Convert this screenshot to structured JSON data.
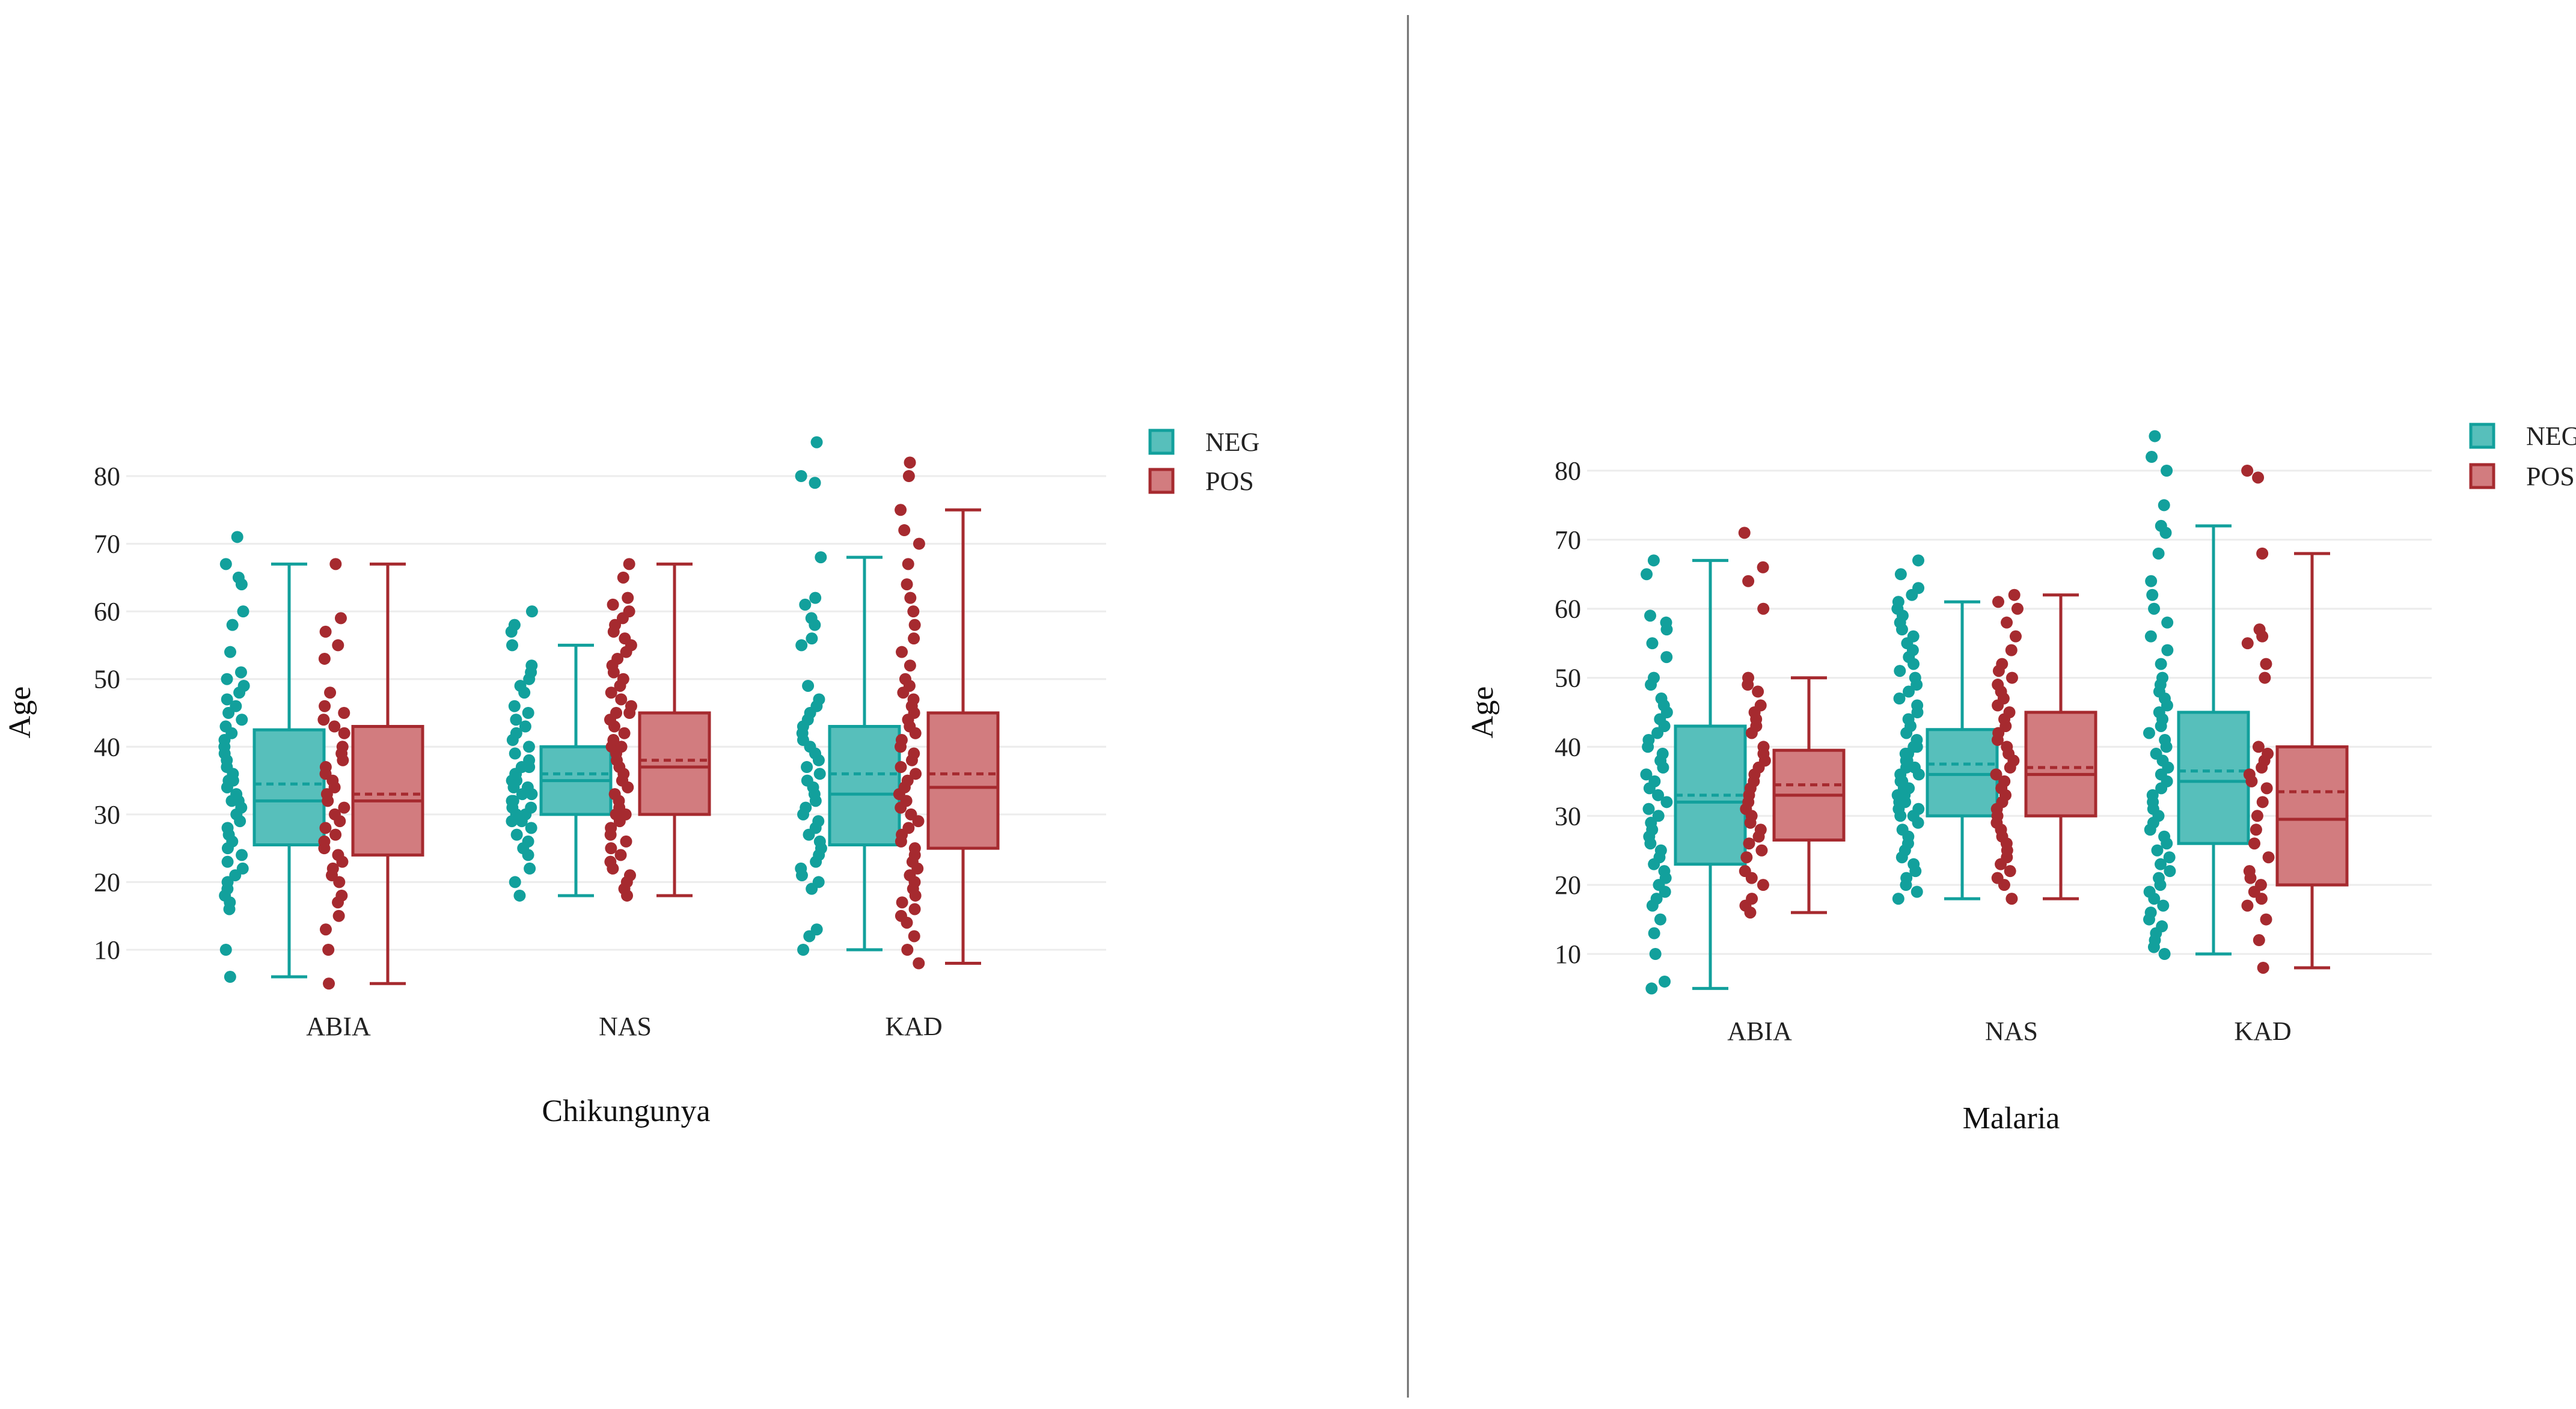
{
  "chart_data": [
    {
      "type": "box",
      "title": "",
      "xlabel": "Chikungunya",
      "ylabel": "Age",
      "yticks": [
        10,
        20,
        30,
        40,
        50,
        60,
        70,
        80
      ],
      "ylim": [
        3,
        86
      ],
      "grid": true,
      "categories": [
        "ABIA",
        "NAS",
        "KAD"
      ],
      "legend": {
        "position": "right-top",
        "entries": [
          "NEG",
          "POS"
        ]
      },
      "series": [
        {
          "name": "NEG",
          "color": "#12a09c",
          "fill": "#57bfbb",
          "boxes": [
            {
              "category": "ABIA",
              "whisker_low": 6,
              "q1": 25.5,
              "median": 32,
              "mean": 34.5,
              "q3": 42.5,
              "whisker_high": 67,
              "points": [
                6,
                10,
                16,
                17,
                18,
                19,
                20,
                21,
                22,
                23,
                24,
                25,
                26,
                27,
                28,
                29,
                30,
                31,
                32,
                32,
                33,
                34,
                35,
                35,
                36,
                37,
                38,
                39,
                40,
                41,
                42,
                43,
                44,
                45,
                46,
                47,
                48,
                49,
                50,
                51,
                54,
                58,
                60,
                64,
                65,
                67,
                71
              ]
            },
            {
              "category": "NAS",
              "whisker_low": 18,
              "q1": 30,
              "median": 35,
              "mean": 36,
              "q3": 40,
              "whisker_high": 55,
              "points": [
                18,
                20,
                22,
                24,
                25,
                26,
                27,
                28,
                29,
                29,
                30,
                30,
                31,
                31,
                32,
                32,
                33,
                33,
                34,
                34,
                35,
                35,
                36,
                36,
                37,
                37,
                38,
                39,
                40,
                41,
                42,
                43,
                44,
                45,
                46,
                48,
                49,
                50,
                51,
                52,
                55,
                57,
                58,
                60
              ]
            },
            {
              "category": "KAD",
              "whisker_low": 10,
              "q1": 25.5,
              "median": 33,
              "mean": 36,
              "q3": 43,
              "whisker_high": 68,
              "points": [
                10,
                12,
                13,
                19,
                20,
                21,
                22,
                23,
                24,
                25,
                26,
                27,
                28,
                29,
                30,
                31,
                32,
                33,
                34,
                35,
                36,
                37,
                38,
                39,
                40,
                41,
                42,
                43,
                44,
                45,
                46,
                47,
                49,
                55,
                56,
                58,
                59,
                61,
                62,
                68,
                79,
                80,
                85
              ]
            }
          ]
        },
        {
          "name": "POS",
          "color": "#a62a2f",
          "fill": "#d27c7f",
          "boxes": [
            {
              "category": "ABIA",
              "whisker_low": 5,
              "q1": 24,
              "median": 32,
              "mean": 33,
              "q3": 43,
              "whisker_high": 67,
              "points": [
                5,
                10,
                13,
                15,
                17,
                18,
                20,
                21,
                22,
                23,
                24,
                25,
                26,
                27,
                28,
                29,
                30,
                31,
                32,
                33,
                34,
                35,
                36,
                37,
                38,
                39,
                40,
                42,
                43,
                44,
                45,
                46,
                48,
                53,
                55,
                57,
                59,
                67
              ]
            },
            {
              "category": "NAS",
              "whisker_low": 18,
              "q1": 30,
              "median": 37,
              "mean": 38,
              "q3": 45,
              "whisker_high": 67,
              "points": [
                18,
                19,
                20,
                21,
                22,
                23,
                24,
                25,
                26,
                27,
                28,
                29,
                30,
                30,
                31,
                32,
                33,
                34,
                35,
                35,
                36,
                37,
                38,
                39,
                40,
                40,
                41,
                42,
                43,
                44,
                45,
                45,
                46,
                47,
                48,
                49,
                50,
                51,
                52,
                53,
                54,
                55,
                56,
                57,
                58,
                59,
                60,
                61,
                62,
                65,
                67
              ]
            },
            {
              "category": "KAD",
              "whisker_low": 8,
              "q1": 25,
              "median": 34,
              "mean": 36,
              "q3": 45,
              "whisker_high": 75,
              "points": [
                8,
                10,
                12,
                14,
                15,
                16,
                17,
                18,
                19,
                20,
                21,
                22,
                23,
                24,
                25,
                26,
                27,
                28,
                29,
                30,
                31,
                32,
                33,
                34,
                35,
                36,
                37,
                38,
                39,
                40,
                41,
                42,
                43,
                44,
                45,
                46,
                47,
                48,
                49,
                50,
                52,
                54,
                56,
                58,
                60,
                62,
                64,
                67,
                70,
                72,
                75,
                80,
                82
              ]
            }
          ]
        }
      ]
    },
    {
      "type": "box",
      "title": "",
      "xlabel": "Malaria",
      "ylabel": "Age",
      "yticks": [
        10,
        20,
        30,
        40,
        50,
        60,
        70,
        80
      ],
      "ylim": [
        3,
        86
      ],
      "grid": true,
      "categories": [
        "ABIA",
        "NAS",
        "KAD"
      ],
      "legend": {
        "position": "right-top",
        "entries": [
          "NEG",
          "POS"
        ]
      },
      "series": [
        {
          "name": "NEG",
          "color": "#12a09c",
          "fill": "#57bfbb",
          "boxes": [
            {
              "category": "ABIA",
              "whisker_low": 5,
              "q1": 23,
              "median": 32,
              "mean": 33,
              "q3": 43,
              "whisker_high": 67,
              "points": [
                5,
                6,
                10,
                13,
                15,
                17,
                18,
                19,
                20,
                21,
                22,
                23,
                24,
                25,
                26,
                27,
                28,
                29,
                30,
                31,
                32,
                33,
                34,
                35,
                36,
                37,
                38,
                39,
                40,
                41,
                42,
                43,
                44,
                45,
                46,
                47,
                49,
                50,
                53,
                55,
                57,
                58,
                59,
                65,
                67
              ]
            },
            {
              "category": "NAS",
              "whisker_low": 18,
              "q1": 30,
              "median": 36,
              "mean": 37.5,
              "q3": 42.5,
              "whisker_high": 61,
              "points": [
                18,
                19,
                20,
                21,
                22,
                23,
                24,
                25,
                26,
                27,
                28,
                29,
                30,
                30,
                31,
                31,
                32,
                32,
                33,
                33,
                34,
                34,
                35,
                35,
                36,
                36,
                37,
                37,
                38,
                38,
                39,
                39,
                40,
                40,
                41,
                42,
                43,
                44,
                45,
                46,
                47,
                48,
                49,
                50,
                51,
                52,
                53,
                54,
                55,
                56,
                57,
                58,
                59,
                60,
                61,
                62,
                63,
                65,
                67
              ]
            },
            {
              "category": "KAD",
              "whisker_low": 10,
              "q1": 26,
              "median": 35,
              "mean": 36.5,
              "q3": 45,
              "whisker_high": 72,
              "points": [
                10,
                11,
                12,
                13,
                14,
                15,
                16,
                17,
                18,
                19,
                20,
                21,
                22,
                23,
                24,
                25,
                26,
                27,
                28,
                29,
                30,
                31,
                32,
                33,
                34,
                35,
                36,
                37,
                38,
                39,
                40,
                41,
                42,
                43,
                44,
                45,
                46,
                47,
                48,
                49,
                50,
                52,
                54,
                56,
                58,
                60,
                62,
                64,
                68,
                71,
                72,
                75,
                80,
                82,
                85
              ]
            }
          ]
        },
        {
          "name": "POS",
          "color": "#a62a2f",
          "fill": "#d27c7f",
          "boxes": [
            {
              "category": "ABIA",
              "whisker_low": 16,
              "q1": 26.5,
              "median": 33,
              "mean": 34.5,
              "q3": 39.5,
              "whisker_high": 50,
              "points": [
                16,
                17,
                18,
                20,
                21,
                22,
                24,
                25,
                26,
                27,
                28,
                29,
                30,
                31,
                32,
                33,
                34,
                35,
                36,
                37,
                38,
                39,
                40,
                42,
                43,
                44,
                45,
                46,
                48,
                49,
                50,
                60,
                64,
                66,
                71
              ]
            },
            {
              "category": "NAS",
              "whisker_low": 18,
              "q1": 30,
              "median": 36,
              "mean": 37,
              "q3": 45,
              "whisker_high": 62,
              "points": [
                18,
                20,
                21,
                22,
                23,
                24,
                25,
                26,
                27,
                28,
                29,
                30,
                31,
                32,
                33,
                34,
                35,
                36,
                37,
                38,
                39,
                40,
                41,
                42,
                43,
                44,
                45,
                46,
                47,
                48,
                49,
                50,
                51,
                52,
                54,
                56,
                58,
                60,
                61,
                62
              ]
            },
            {
              "category": "KAD",
              "whisker_low": 8,
              "q1": 20,
              "median": 29.5,
              "mean": 33.5,
              "q3": 40,
              "whisker_high": 68,
              "points": [
                8,
                12,
                15,
                17,
                18,
                19,
                20,
                21,
                22,
                24,
                26,
                28,
                30,
                32,
                34,
                35,
                36,
                37,
                38,
                39,
                40,
                50,
                52,
                55,
                56,
                57,
                68,
                79,
                80
              ]
            }
          ]
        }
      ]
    }
  ]
}
